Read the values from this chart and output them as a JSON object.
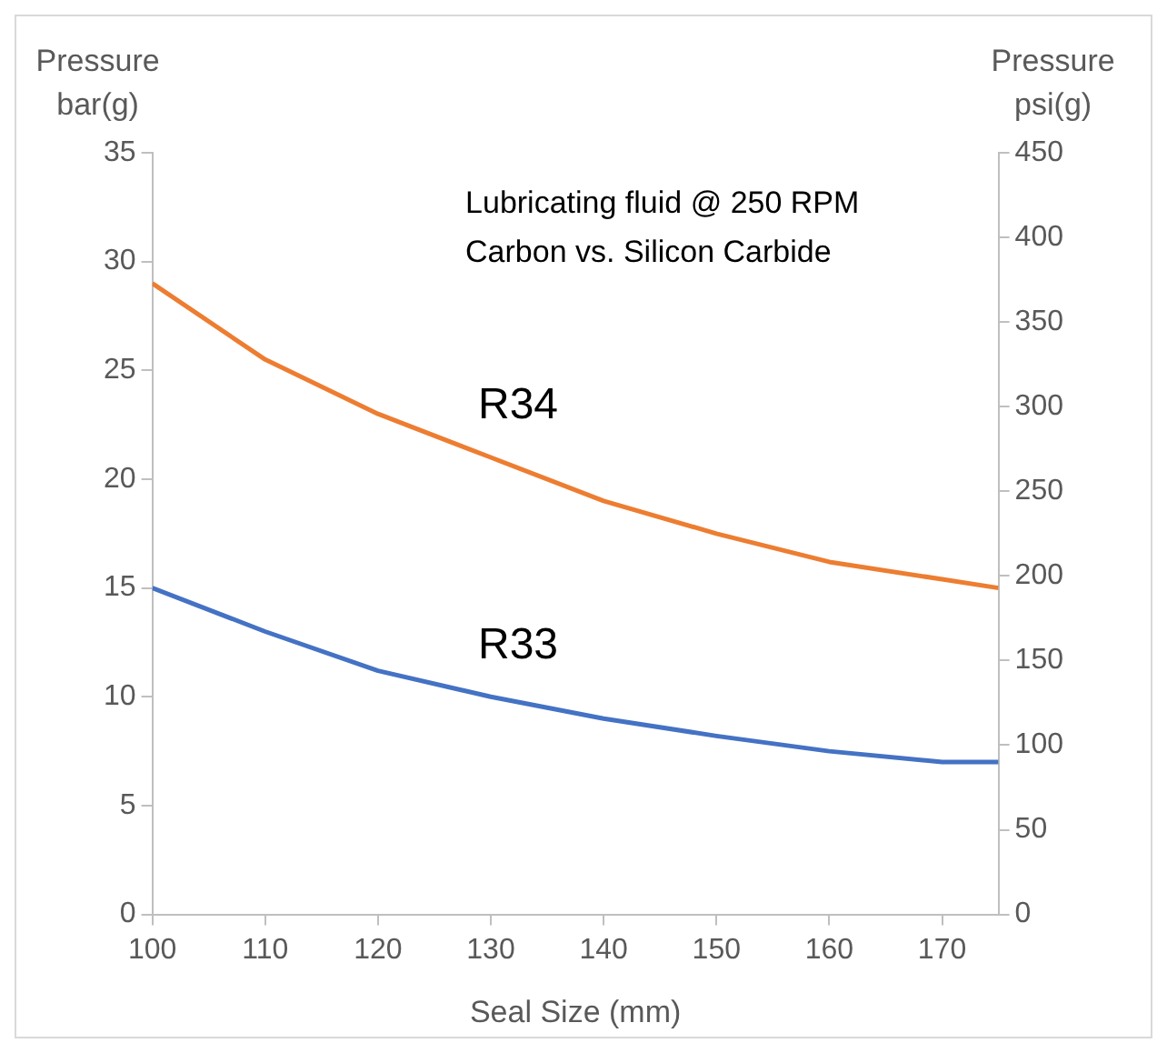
{
  "chart_data": {
    "type": "line",
    "xlabel": "Seal Size (mm)",
    "ylabel": "Pressure bar(g)",
    "y2label": "Pressure psi(g)",
    "annotations": [
      "Lubricating fluid @ 250 RPM",
      "Carbon vs. Silicon Carbide"
    ],
    "x": [
      100,
      110,
      120,
      130,
      140,
      150,
      160,
      170,
      175
    ],
    "series": [
      {
        "name": "R34",
        "color": "#ed7d31",
        "values": [
          29,
          25.5,
          23,
          21,
          19,
          17.5,
          16.2,
          15.4,
          15
        ]
      },
      {
        "name": "R33",
        "color": "#4472c4",
        "values": [
          15,
          13,
          11.2,
          10,
          9,
          8.2,
          7.5,
          7,
          7
        ]
      }
    ],
    "xlim": [
      100,
      175
    ],
    "xticks": [
      100,
      110,
      120,
      130,
      140,
      150,
      160,
      170
    ],
    "ylim": [
      0,
      35
    ],
    "yticks": [
      0,
      5,
      10,
      15,
      20,
      25,
      30,
      35
    ],
    "y2lim": [
      0,
      450
    ],
    "y2ticks": [
      0,
      50,
      100,
      150,
      200,
      250,
      300,
      350,
      400,
      450
    ],
    "grid": false,
    "legend": false,
    "marker": "none",
    "line_style": "solid"
  }
}
